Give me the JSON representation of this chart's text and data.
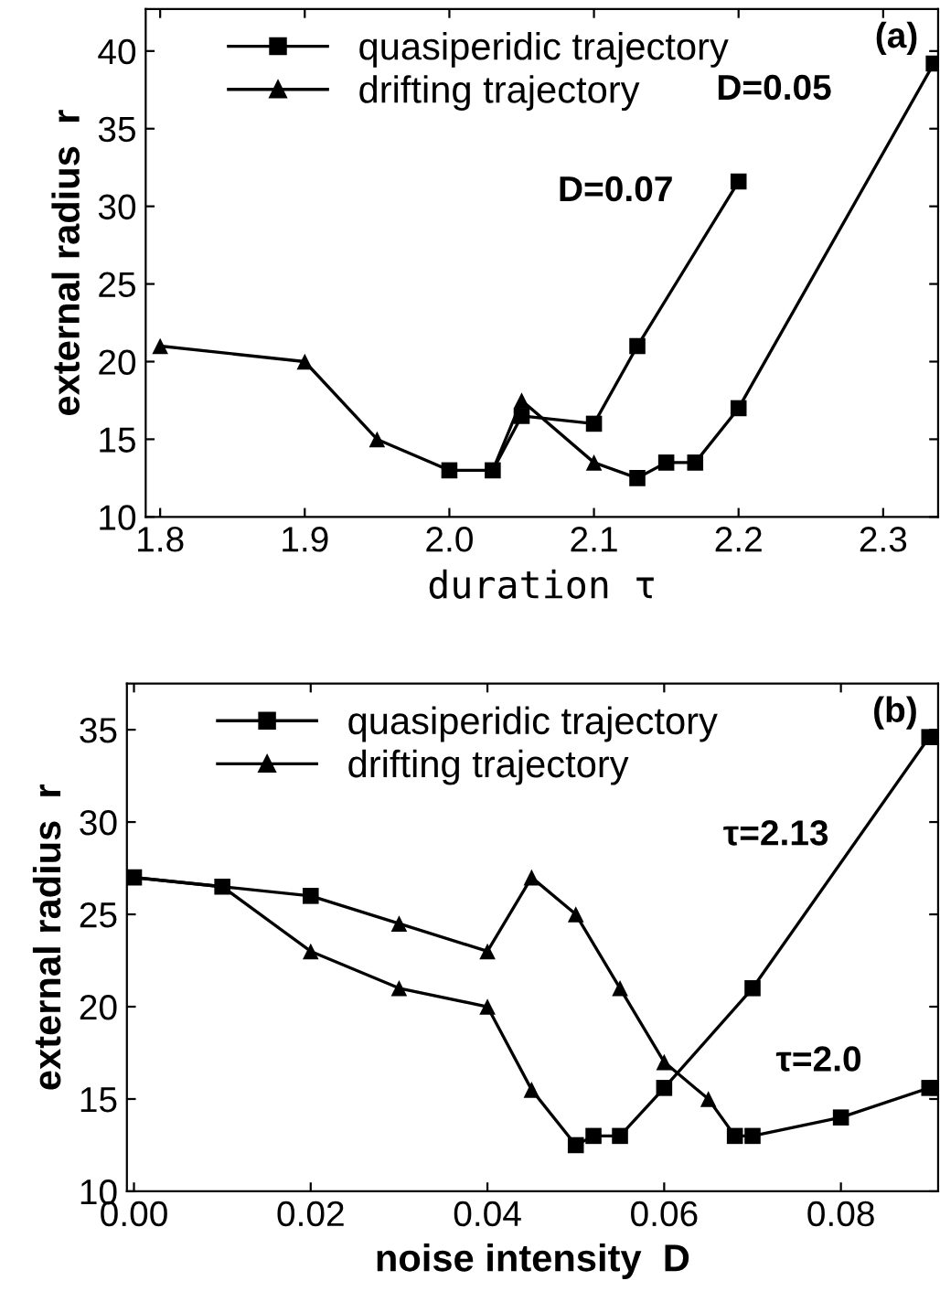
{
  "chart_data": [
    {
      "type": "line",
      "xlabel": "duration τ",
      "ylabel": "external radius  r",
      "xlim": [
        1.79,
        2.338
      ],
      "ylim": [
        10,
        42.7
      ],
      "xticks": [
        1.8,
        1.9,
        {
          "value": 2.0,
          "label": "2.0"
        },
        2.1,
        2.2,
        2.3
      ],
      "yticks": [
        10,
        15,
        20,
        25,
        30,
        35,
        40
      ],
      "grid": false,
      "legend": "top",
      "line_style": "solid",
      "annotations": [
        "(a)",
        "D=0.07",
        "D=0.05"
      ],
      "series": [
        {
          "color": "#000000",
          "marker": "none",
          "x": [
            1.8,
            1.9,
            1.95,
            2.0,
            2.03,
            2.05,
            2.1,
            2.13,
            2.15,
            2.17,
            2.2,
            2.335
          ],
          "values": [
            21,
            20,
            15,
            13,
            13,
            17.5,
            13.5,
            12.5,
            13.5,
            13.5,
            17,
            39.2
          ]
        },
        {
          "color": "#000000",
          "marker": "none",
          "x": [
            2.03,
            2.05,
            2.1,
            2.13,
            2.2
          ],
          "values": [
            13,
            16.5,
            16,
            21,
            31.6
          ]
        },
        {
          "type": "scatter",
          "name": "quasiperidic trajectory",
          "color": "#000000",
          "marker": "square",
          "x": [
            2.0,
            2.03,
            2.05,
            2.1,
            2.13,
            2.15,
            2.17,
            2.2,
            2.2,
            2.335,
            2.13
          ],
          "values": [
            13,
            13,
            16.5,
            16,
            12.5,
            13.5,
            13.5,
            17,
            31.6,
            39.2,
            21
          ]
        },
        {
          "type": "scatter",
          "name": "drifting trajectory",
          "color": "#000000",
          "marker": "triangle",
          "x": [
            1.8,
            1.9,
            1.95,
            2.05,
            2.1
          ],
          "values": [
            21,
            20,
            15,
            17.5,
            13.5
          ]
        }
      ]
    },
    {
      "type": "line",
      "xlabel": "noise intensity  D",
      "ylabel": "external radius  r",
      "xlim": [
        -0.0008,
        0.091
      ],
      "ylim": [
        10,
        37.5
      ],
      "xticks": [
        {
          "value": 0,
          "label": "0.00"
        },
        {
          "value": 0.02,
          "label": "0.02"
        },
        {
          "value": 0.04,
          "label": "0.04"
        },
        {
          "value": 0.06,
          "label": "0.06"
        },
        {
          "value": 0.08,
          "label": "0.08"
        }
      ],
      "yticks": [
        10,
        15,
        20,
        25,
        30,
        35
      ],
      "grid": false,
      "legend": "top",
      "line_style": "solid",
      "annotations": [
        "(b)",
        "τ=2.13",
        "τ=2.0"
      ],
      "series": [
        {
          "color": "#000000",
          "marker": "none",
          "x": [
            0,
            0.01,
            0.02,
            0.03,
            0.04,
            0.045,
            0.05,
            0.052,
            0.055,
            0.06,
            0.07,
            0.09
          ],
          "values": [
            27,
            26.5,
            23,
            21,
            20,
            15.5,
            12.5,
            13,
            13,
            15.6,
            21,
            34.6
          ]
        },
        {
          "color": "#000000",
          "marker": "none",
          "x": [
            0,
            0.01,
            0.02,
            0.03,
            0.04,
            0.045,
            0.05,
            0.055,
            0.06,
            0.065,
            0.068,
            0.07,
            0.08,
            0.09
          ],
          "values": [
            27,
            26.5,
            26,
            24.5,
            23,
            27,
            25,
            21,
            17,
            15,
            13,
            13,
            14,
            15.6
          ]
        },
        {
          "type": "scatter",
          "name": "quasiperidic trajectory",
          "color": "#000000",
          "marker": "square",
          "x": [
            0,
            0.01,
            0.02,
            0.05,
            0.052,
            0.055,
            0.06,
            0.07,
            0.09,
            0.068,
            0.07,
            0.08,
            0.09
          ],
          "values": [
            27,
            26.5,
            26,
            12.5,
            13,
            13,
            15.6,
            21,
            34.6,
            13,
            13,
            14,
            15.6
          ]
        },
        {
          "type": "scatter",
          "name": "drifting trajectory",
          "color": "#000000",
          "marker": "triangle",
          "x": [
            0.02,
            0.03,
            0.04,
            0.045,
            0.03,
            0.04,
            0.045,
            0.05,
            0.055,
            0.06,
            0.065
          ],
          "values": [
            23,
            21,
            20,
            15.5,
            24.5,
            23,
            27,
            25,
            21,
            17,
            15
          ]
        }
      ]
    }
  ]
}
